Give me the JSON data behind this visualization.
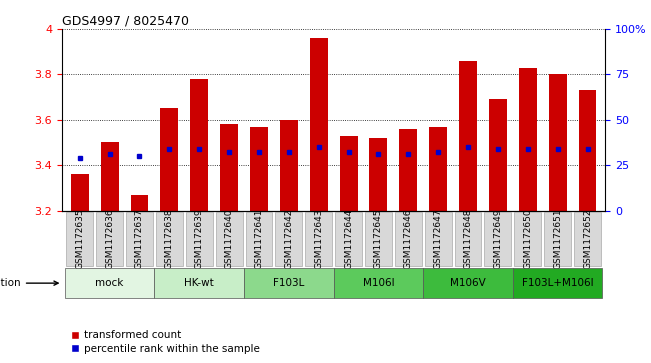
{
  "title": "GDS4997 / 8025470",
  "samples": [
    "GSM1172635",
    "GSM1172636",
    "GSM1172637",
    "GSM1172638",
    "GSM1172639",
    "GSM1172640",
    "GSM1172641",
    "GSM1172642",
    "GSM1172643",
    "GSM1172644",
    "GSM1172645",
    "GSM1172646",
    "GSM1172647",
    "GSM1172648",
    "GSM1172649",
    "GSM1172650",
    "GSM1172651",
    "GSM1172652"
  ],
  "bar_values": [
    3.36,
    3.5,
    3.27,
    3.65,
    3.78,
    3.58,
    3.57,
    3.6,
    3.96,
    3.53,
    3.52,
    3.56,
    3.57,
    3.86,
    3.69,
    3.83,
    3.8,
    3.73
  ],
  "percentile_values": [
    3.43,
    3.45,
    3.44,
    3.47,
    3.47,
    3.46,
    3.46,
    3.46,
    3.48,
    3.46,
    3.45,
    3.45,
    3.46,
    3.48,
    3.47,
    3.47,
    3.47,
    3.47
  ],
  "bar_color": "#cc0000",
  "percentile_color": "#0000cc",
  "ymin": 3.2,
  "ymax": 4.0,
  "yticks_left": [
    3.2,
    3.4,
    3.6,
    3.8,
    4.0
  ],
  "ytick_labels_left": [
    "3.2",
    "3.4",
    "3.6",
    "3.8",
    "4"
  ],
  "ytick_labels_right": [
    "0",
    "25",
    "50",
    "75",
    "100%"
  ],
  "groups": [
    {
      "label": "mock",
      "start": 0,
      "end": 2,
      "color": "#e2f5e2"
    },
    {
      "label": "HK-wt",
      "start": 3,
      "end": 5,
      "color": "#c8eec8"
    },
    {
      "label": "F103L",
      "start": 6,
      "end": 8,
      "color": "#8cd98c"
    },
    {
      "label": "M106I",
      "start": 9,
      "end": 11,
      "color": "#5cca5c"
    },
    {
      "label": "M106V",
      "start": 12,
      "end": 14,
      "color": "#3dbb3d"
    },
    {
      "label": "F103L+M106I",
      "start": 15,
      "end": 17,
      "color": "#22aa22"
    }
  ],
  "infection_label": "infection",
  "legend_bar_label": "transformed count",
  "legend_pct_label": "percentile rank within the sample",
  "tick_label_bg": "#d8d8d8",
  "tick_label_fontsize": 6.5,
  "bar_width": 0.6
}
